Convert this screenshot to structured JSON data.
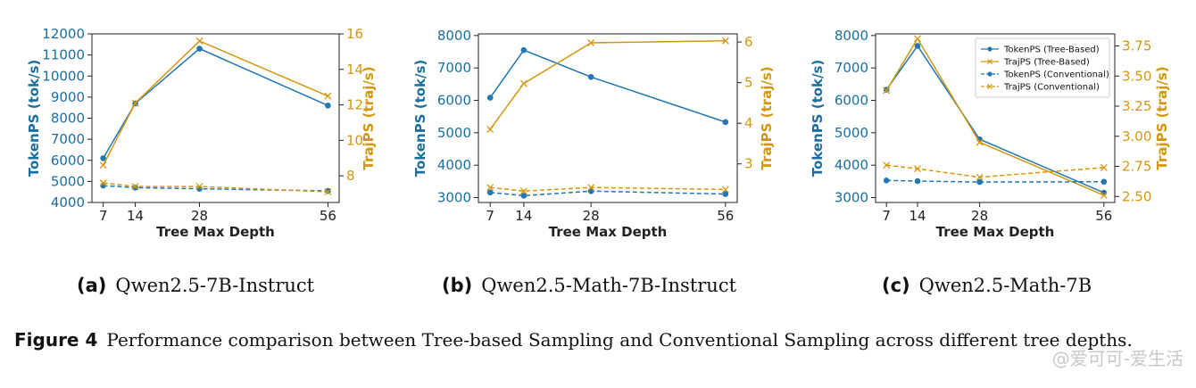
{
  "chart_data": [
    {
      "type": "line",
      "xlabel": "Tree Max Depth",
      "ylabel_left": "TokenPS (tok/s)",
      "ylabel_right": "TrajPS (traj/s)",
      "x": [
        7,
        14,
        28,
        56
      ],
      "x_ticks": [
        7,
        14,
        28,
        56
      ],
      "ylim_left": [
        4000,
        12000
      ],
      "yticks_left": [
        4000,
        5000,
        6000,
        7000,
        8000,
        9000,
        10000,
        11000,
        12000
      ],
      "ylim_right": [
        6.5,
        16
      ],
      "yticks_right": [
        8,
        10,
        12,
        14,
        16
      ],
      "series": [
        {
          "name": "TokenPS (Tree-Based)",
          "axis": "left",
          "style": "solid",
          "marker": "circle",
          "values": [
            6100,
            8700,
            11300,
            8600
          ]
        },
        {
          "name": "TrajPS (Tree-Based)",
          "axis": "right",
          "style": "solid",
          "marker": "x",
          "values": [
            8.6,
            12.1,
            15.6,
            12.5
          ]
        },
        {
          "name": "TokenPS (Conventional)",
          "axis": "left",
          "style": "dashed",
          "marker": "circle",
          "values": [
            4800,
            4700,
            4650,
            4550
          ]
        },
        {
          "name": "TrajPS (Conventional)",
          "axis": "right",
          "style": "dashed",
          "marker": "x",
          "values": [
            7.6,
            7.4,
            7.4,
            7.1
          ]
        }
      ],
      "legend": null
    },
    {
      "type": "line",
      "xlabel": "Tree Max Depth",
      "ylabel_left": "TokenPS (tok/s)",
      "ylabel_right": "TrajPS (traj/s)",
      "x": [
        7,
        14,
        28,
        56
      ],
      "x_ticks": [
        7,
        14,
        28,
        56
      ],
      "ylim_left": [
        2850,
        8050
      ],
      "yticks_left": [
        3000,
        4000,
        5000,
        6000,
        7000,
        8000
      ],
      "ylim_right": [
        2.05,
        6.2
      ],
      "yticks_right": [
        3,
        4,
        5,
        6
      ],
      "series": [
        {
          "name": "TokenPS (Tree-Based)",
          "axis": "left",
          "style": "solid",
          "marker": "circle",
          "values": [
            6080,
            7550,
            6720,
            5330
          ]
        },
        {
          "name": "TrajPS (Tree-Based)",
          "axis": "right",
          "style": "solid",
          "marker": "x",
          "values": [
            3.85,
            4.98,
            5.98,
            6.03
          ]
        },
        {
          "name": "TokenPS (Conventional)",
          "axis": "left",
          "style": "dashed",
          "marker": "circle",
          "values": [
            3160,
            3060,
            3200,
            3110
          ]
        },
        {
          "name": "TrajPS (Conventional)",
          "axis": "right",
          "style": "dashed",
          "marker": "x",
          "values": [
            2.42,
            2.33,
            2.42,
            2.37
          ]
        }
      ],
      "legend": null
    },
    {
      "type": "line",
      "xlabel": "Tree Max Depth",
      "ylabel_left": "TokenPS (tok/s)",
      "ylabel_right": "TrajPS (traj/s)",
      "x": [
        7,
        14,
        28,
        56
      ],
      "x_ticks": [
        7,
        14,
        28,
        56
      ],
      "ylim_left": [
        2850,
        8050
      ],
      "yticks_left": [
        3000,
        4000,
        5000,
        6000,
        7000,
        8000
      ],
      "ylim_right": [
        2.45,
        3.85
      ],
      "yticks_right": [
        "2.50",
        "2.75",
        "3.00",
        "3.25",
        "3.50",
        "3.75"
      ],
      "series": [
        {
          "name": "TokenPS (Tree-Based)",
          "axis": "left",
          "style": "solid",
          "marker": "circle",
          "values": [
            6330,
            7680,
            4800,
            3150
          ]
        },
        {
          "name": "TrajPS (Tree-Based)",
          "axis": "right",
          "style": "solid",
          "marker": "x",
          "values": [
            3.38,
            3.81,
            2.95,
            2.51
          ]
        },
        {
          "name": "TokenPS (Conventional)",
          "axis": "left",
          "style": "dashed",
          "marker": "circle",
          "values": [
            3530,
            3510,
            3480,
            3490
          ]
        },
        {
          "name": "TrajPS (Conventional)",
          "axis": "right",
          "style": "dashed",
          "marker": "x",
          "values": [
            2.76,
            2.73,
            2.66,
            2.74
          ]
        }
      ],
      "legend": "top-right"
    }
  ],
  "colors": {
    "token": "#1f77b4",
    "token_dark": "#1a6f9e",
    "traj": "#d4960f",
    "axis": "#222222"
  },
  "subcaptions": [
    {
      "label": "(a)",
      "text": "Qwen2.5-7B-Instruct"
    },
    {
      "label": "(b)",
      "text": "Qwen2.5-Math-7B-Instruct"
    },
    {
      "label": "(c)",
      "text": "Qwen2.5-Math-7B"
    }
  ],
  "figure_caption": {
    "label": "Figure 4",
    "text": "Performance comparison between Tree-based Sampling and Conventional Sampling across different tree depths."
  },
  "watermark": "@爱可可-爱生活"
}
